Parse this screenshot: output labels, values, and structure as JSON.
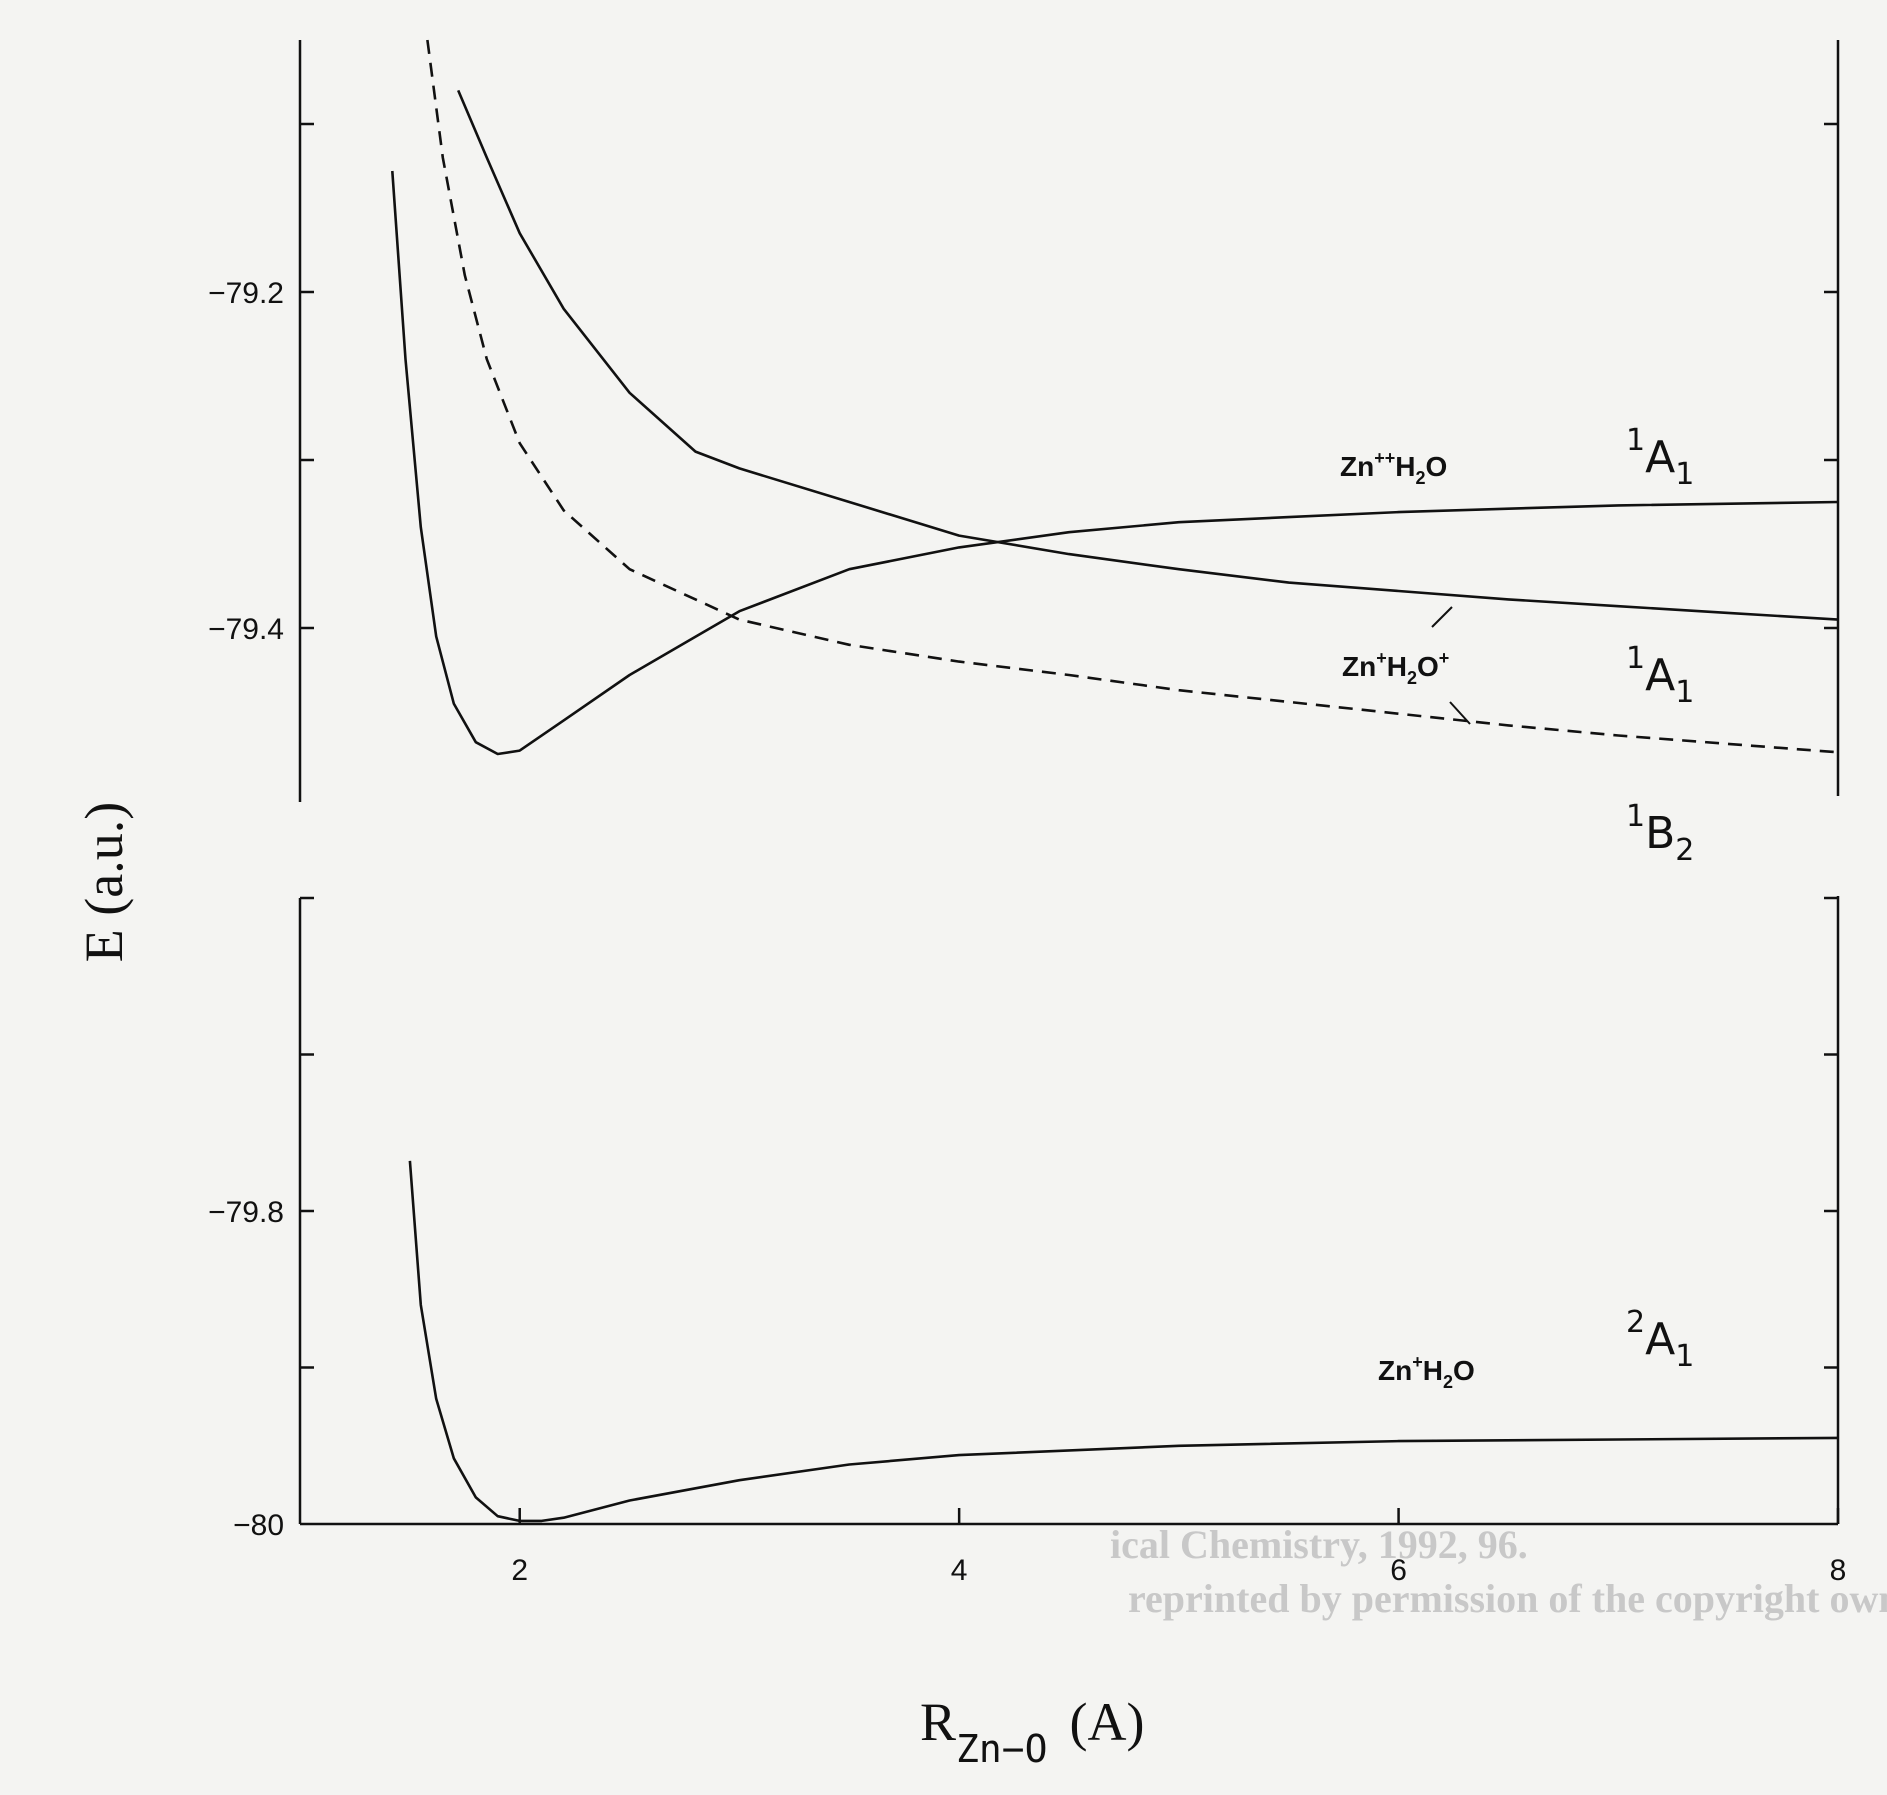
{
  "chart_data": {
    "type": "line",
    "xlabel": "R",
    "xlabel_sub": "Zn−O",
    "xlabel_unit": "(A)",
    "ylabel": "E (a.u.)",
    "xlim": [
      1.0,
      8.0
    ],
    "panels": [
      {
        "name": "upper",
        "ylim": [
          -79.5,
          -79.05
        ],
        "y_ticks": [
          -79.4,
          -79.3,
          -79.2,
          -79.1
        ],
        "y_tick_labels": [
          {
            "value": -79.2,
            "label": "-79.2"
          },
          {
            "value": -79.4,
            "label": "-79.4"
          }
        ],
        "series": [
          {
            "key": "zn2_h2o",
            "style": "solid",
            "x": [
              1.72,
              1.85,
              2.0,
              2.2,
              2.5,
              2.8,
              3.0,
              3.5,
              4.0,
              4.5,
              5.0,
              5.5,
              6.0,
              6.5,
              7.0,
              7.5,
              8.0
            ],
            "y": [
              -79.08,
              -79.12,
              -79.165,
              -79.21,
              -79.26,
              -79.295,
              -79.305,
              -79.325,
              -79.345,
              -79.356,
              -79.365,
              -79.373,
              -79.378,
              -79.383,
              -79.387,
              -79.391,
              -79.395
            ]
          },
          {
            "key": "zn_h2o_plus",
            "style": "solid",
            "x": [
              1.42,
              1.48,
              1.55,
              1.62,
              1.7,
              1.8,
              1.9,
              2.0,
              2.2,
              2.5,
              3.0,
              3.5,
              4.0,
              4.5,
              5.0,
              5.5,
              6.0,
              6.5,
              7.0,
              8.0
            ],
            "y": [
              -79.128,
              -79.24,
              -79.34,
              -79.405,
              -79.445,
              -79.468,
              -79.475,
              -79.473,
              -79.455,
              -79.428,
              -79.39,
              -79.365,
              -79.352,
              -79.343,
              -79.337,
              -79.334,
              -79.331,
              -79.329,
              -79.327,
              -79.325
            ]
          },
          {
            "key": "b2",
            "style": "dashed",
            "x": [
              1.58,
              1.65,
              1.75,
              1.85,
              2.0,
              2.2,
              2.5,
              3.0,
              3.5,
              4.0,
              4.5,
              5.0,
              5.5,
              6.0,
              6.5,
              7.0,
              7.5,
              8.0
            ],
            "y": [
              -79.05,
              -79.12,
              -79.19,
              -79.24,
              -79.29,
              -79.33,
              -79.365,
              -79.395,
              -79.41,
              -79.42,
              -79.428,
              -79.437,
              -79.444,
              -79.451,
              -79.458,
              -79.464,
              -79.469,
              -79.474
            ]
          }
        ]
      },
      {
        "name": "lower",
        "ylim": [
          -80.0,
          -79.6
        ],
        "y_ticks": [
          -79.9,
          -79.8,
          -79.7,
          -79.6
        ],
        "y_tick_labels": [
          {
            "value": -79.8,
            "label": "-79.8"
          },
          {
            "value": -80.0,
            "label": "-80"
          }
        ],
        "series": [
          {
            "key": "zn_plus_h2o",
            "style": "solid",
            "x": [
              1.5,
              1.55,
              1.62,
              1.7,
              1.8,
              1.9,
              2.0,
              2.1,
              2.2,
              2.5,
              3.0,
              3.5,
              4.0,
              5.0,
              6.0,
              7.0,
              8.0
            ],
            "y": [
              -79.768,
              -79.86,
              -79.92,
              -79.958,
              -79.983,
              -79.995,
              -79.998,
              -79.998,
              -79.996,
              -79.985,
              -79.972,
              -79.962,
              -79.956,
              -79.95,
              -79.947,
              -79.946,
              -79.945
            ]
          }
        ]
      }
    ],
    "x_ticks": [
      2,
      4,
      6,
      8
    ],
    "x_tick_labels": [
      "2",
      "4",
      "6",
      "8"
    ],
    "annotations": {
      "zn2_h2o": {
        "name": "Zn",
        "charge": "++",
        "mol": "H",
        "mol_sub": "2",
        "mol_rest": "O"
      },
      "zn_h2o_plus": {
        "name": "Zn",
        "charge": "+",
        "mol": "H",
        "mol_sub": "2",
        "mol_rest": "O",
        "mol_charge": "+"
      },
      "zn_plus_h2o": {
        "name": "Zn",
        "charge": "+",
        "mol": "H",
        "mol_sub": "2",
        "mol_rest": "O"
      }
    },
    "state_labels": {
      "a1_upper": {
        "sup": "1",
        "main": "A",
        "sub": "1"
      },
      "a1_middle": {
        "sup": "1",
        "main": "A",
        "sub": "1"
      },
      "b2": {
        "sup": "1",
        "main": "B",
        "sub": "2"
      },
      "a1_lower": {
        "sup": "2",
        "main": "A",
        "sub": "1"
      }
    },
    "grid": false
  },
  "copyright_ghost": {
    "line1": "ical Chemistry, 1992, 96.",
    "line2": "reprinted by permission of the copyright owner."
  }
}
